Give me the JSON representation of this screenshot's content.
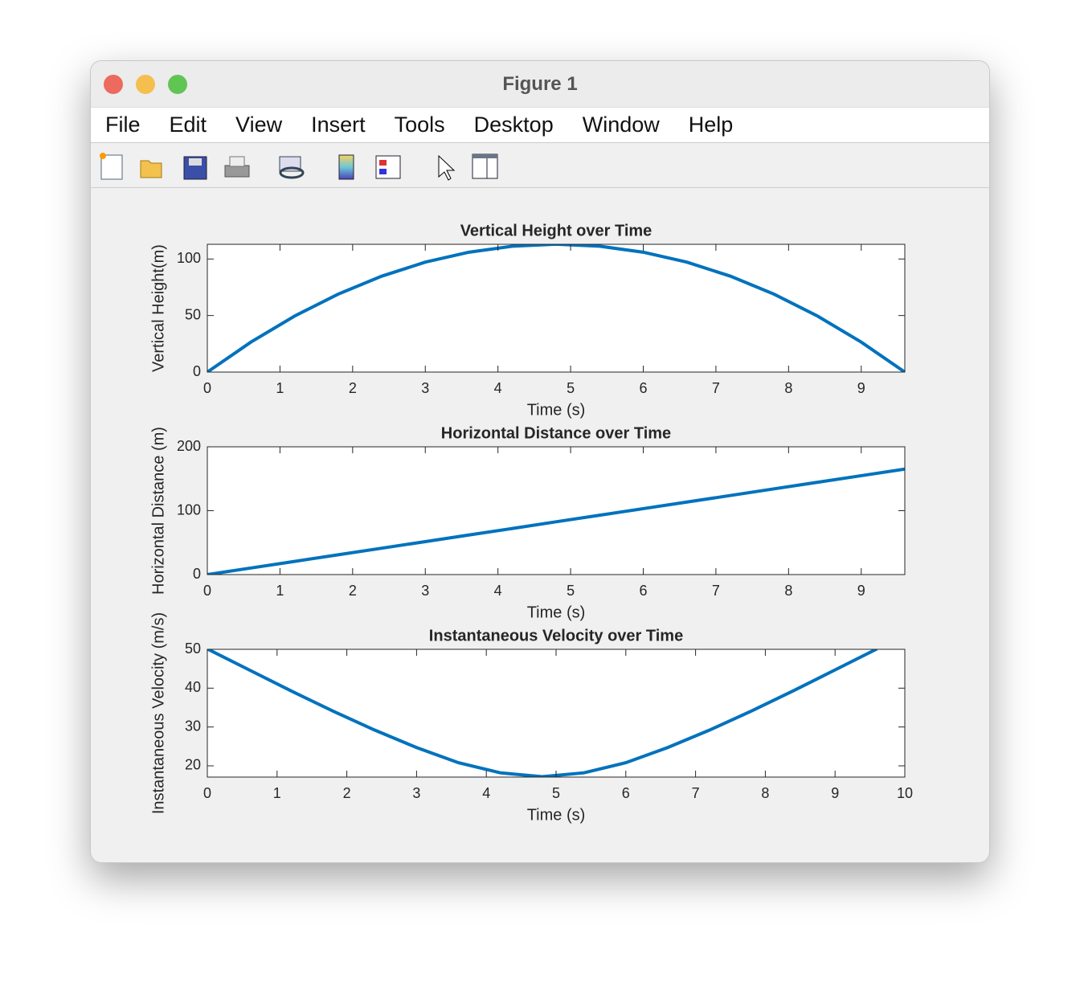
{
  "window": {
    "title": "Figure 1"
  },
  "menu": [
    "File",
    "Edit",
    "View",
    "Insert",
    "Tools",
    "Desktop",
    "Window",
    "Help"
  ],
  "chart_data": [
    {
      "type": "line",
      "title": "Vertical Height over Time",
      "x_label": "Time (s)",
      "y_label": "Vertical Height(m)",
      "x": [
        0,
        0.6,
        1.2,
        1.8,
        2.4,
        3.0,
        3.6,
        4.2,
        4.8,
        5.4,
        6.0,
        6.6,
        7.2,
        7.8,
        8.4,
        9.0,
        9.6
      ],
      "values": [
        0,
        26.5,
        49.5,
        68.9,
        84.8,
        97.2,
        106.0,
        111.3,
        113.1,
        111.3,
        106.0,
        97.2,
        84.8,
        68.9,
        49.5,
        26.5,
        0
      ],
      "color": "#0072bd",
      "xlim": [
        0,
        9.6
      ],
      "ylim": [
        0,
        113
      ],
      "xticks": [
        0,
        1,
        2,
        3,
        4,
        5,
        6,
        7,
        8,
        9
      ],
      "yticks": [
        0,
        50,
        100
      ]
    },
    {
      "type": "line",
      "title": "Horizontal Distance over Time",
      "x_label": "Time (s)",
      "y_label": "Horizontal Distance (m)",
      "x": [
        0,
        0.6,
        1.2,
        1.8,
        2.4,
        3.0,
        3.6,
        4.2,
        4.8,
        5.4,
        6.0,
        6.6,
        7.2,
        7.8,
        8.4,
        9.0,
        9.6
      ],
      "values": [
        0,
        10.3,
        20.6,
        31.0,
        41.3,
        51.6,
        61.9,
        72.2,
        82.6,
        92.9,
        103.2,
        113.5,
        123.8,
        134.2,
        144.5,
        154.8,
        165.1
      ],
      "color": "#0072bd",
      "xlim": [
        0,
        9.6
      ],
      "ylim": [
        0,
        200
      ],
      "xticks": [
        0,
        1,
        2,
        3,
        4,
        5,
        6,
        7,
        8,
        9
      ],
      "yticks": [
        0,
        100,
        200
      ]
    },
    {
      "type": "line",
      "title": "Instantaneous Velocity over Time",
      "x_label": "Time (s)",
      "y_label": "Instantaneous Velocity (m/s)",
      "x": [
        0,
        0.6,
        1.2,
        1.8,
        2.4,
        3.0,
        3.6,
        4.2,
        4.8,
        5.4,
        6.0,
        6.6,
        7.2,
        7.8,
        8.4,
        9.0,
        9.6
      ],
      "values": [
        50.1,
        44.7,
        39.3,
        34.1,
        29.2,
        24.7,
        20.8,
        18.2,
        17.2,
        18.2,
        20.8,
        24.7,
        29.2,
        34.1,
        39.3,
        44.7,
        50.1
      ],
      "color": "#0072bd",
      "xlim": [
        0,
        10
      ],
      "ylim": [
        17.1,
        50
      ],
      "xticks": [
        0,
        1,
        2,
        3,
        4,
        5,
        6,
        7,
        8,
        9,
        10
      ],
      "yticks": [
        20,
        30,
        40,
        50
      ]
    }
  ]
}
